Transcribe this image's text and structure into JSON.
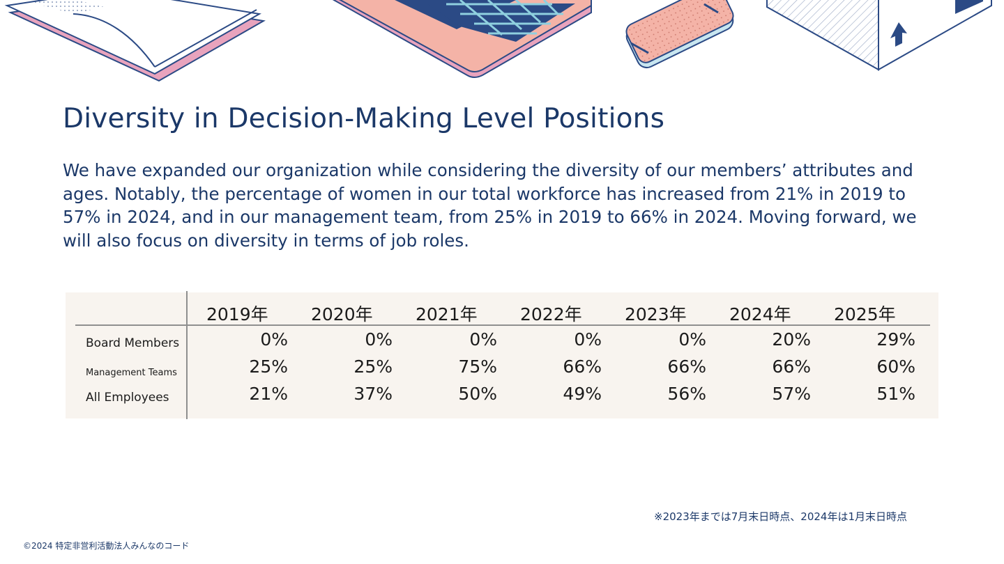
{
  "title": "Diversity in Decision-Making Level Positions",
  "intro": "We have expanded our organization while considering the diversity of our members’ attributes and ages. Notably, the percentage of women in our total workforce has increased from 21% in 2019 to 57% in 2024, and in our management team, from 25% in 2019 to 66% in 2024. Moving forward, we will also focus on diversity in terms of job roles.",
  "table": {
    "years": [
      "2019年",
      "2020年",
      "2021年",
      "2022年",
      "2023年",
      "2024年",
      "2025年"
    ],
    "rows": [
      {
        "label": "Board Members",
        "values": [
          "0%",
          "0%",
          "0%",
          "0%",
          "0%",
          "20%",
          "29%"
        ]
      },
      {
        "label": "Management Teams",
        "values": [
          "25%",
          "25%",
          "75%",
          "66%",
          "66%",
          "66%",
          "60%"
        ]
      },
      {
        "label": "All Employees",
        "values": [
          "21%",
          "37%",
          "50%",
          "49%",
          "56%",
          "57%",
          "51%"
        ]
      }
    ]
  },
  "note": "※2023年までは7月末日時点、2024年は1月末日時点",
  "copyright": "©2024 特定非営利活動法人みんなのコード",
  "illustration": {
    "icons": [
      "open-book-icon",
      "laptop-icon",
      "smartphone-icon",
      "box-icon"
    ],
    "colors": {
      "navy": "#2b4a85",
      "pink": "#f4b3a7",
      "rose": "#e8a3bd",
      "cyan": "#8fd0df",
      "light_blue": "#c8e6f0"
    }
  }
}
